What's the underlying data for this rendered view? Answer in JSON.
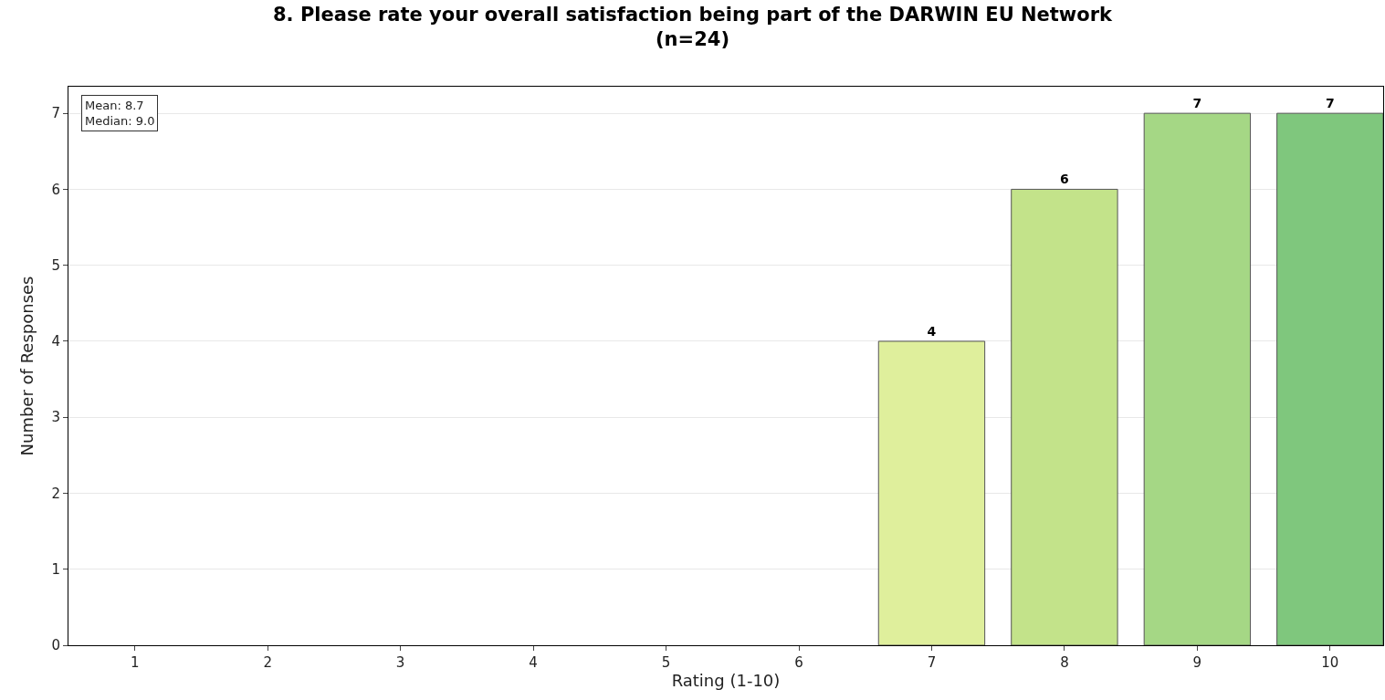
{
  "chart_data": {
    "type": "bar",
    "title": "8. Please rate your overall satisfaction being part of the DARWIN EU Network\n(n=24)",
    "xlabel": "Rating (1-10)",
    "ylabel": "Number of Responses",
    "categories": [
      "1",
      "2",
      "3",
      "4",
      "5",
      "6",
      "7",
      "8",
      "9",
      "10"
    ],
    "values": [
      0,
      0,
      0,
      0,
      0,
      0,
      4,
      6,
      7,
      7
    ],
    "colors": [
      "#dfef9c",
      "#dfef9c",
      "#dfef9c",
      "#dfef9c",
      "#dfef9c",
      "#dfef9c",
      "#dfef9c",
      "#c3e38a",
      "#a5d785",
      "#7fc77d"
    ],
    "value_labels": [
      null,
      null,
      null,
      null,
      null,
      null,
      "4",
      "6",
      "7",
      "7"
    ],
    "ylim": [
      0,
      7.35
    ],
    "yticks": [
      0,
      1,
      2,
      3,
      4,
      5,
      6,
      7
    ],
    "grid": "y",
    "annotations": [
      "Mean: 8.7\nMedian: 9.0"
    ]
  }
}
